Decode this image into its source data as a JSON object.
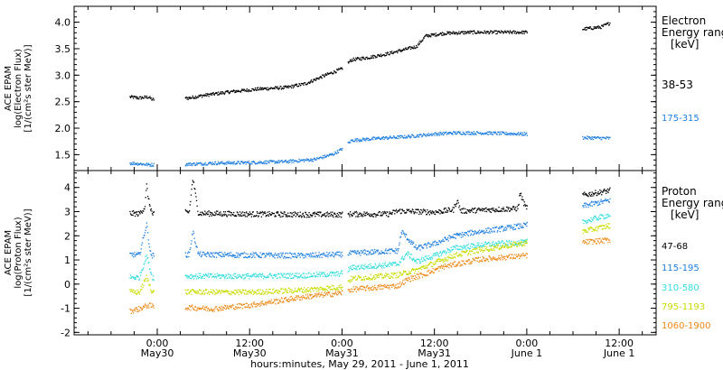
{
  "colors": {
    "black": "#000000",
    "blue": "#1f7fe0",
    "cyan": "#33dddd",
    "yellow": "#c8dc00",
    "orange": "#ee8a18"
  },
  "chart_data": [
    {
      "type": "scatter",
      "panel": "electron",
      "ylabel": [
        "ACE EPAM",
        "log(Electron Flux)",
        "[1/(cm²s ster MeV)]"
      ],
      "y_scale": "log10",
      "ylim": [
        1.2,
        4.3
      ],
      "yticks": [
        "1.5",
        "2.0",
        "2.5",
        "3.0",
        "3.5",
        "4.0"
      ],
      "legend_title": [
        "Electron",
        "Energy range",
        "[keV]"
      ],
      "series": [
        {
          "name": "38-53",
          "color": "#000000",
          "points": [
            [
              -0.15,
              2.6
            ],
            [
              -0.1,
              2.58
            ],
            [
              -0.05,
              2.6
            ],
            [
              -0.03,
              2.55
            ],
            [
              0.17,
              2.58
            ],
            [
              0.25,
              2.63
            ],
            [
              0.4,
              2.7
            ],
            [
              0.55,
              2.75
            ],
            [
              0.7,
              2.78
            ],
            [
              0.8,
              2.85
            ],
            [
              0.9,
              3.0
            ],
            [
              0.99,
              3.12
            ],
            [
              1.05,
              3.3
            ],
            [
              1.15,
              3.35
            ],
            [
              1.25,
              3.42
            ],
            [
              1.4,
              3.55
            ],
            [
              1.45,
              3.75
            ],
            [
              1.55,
              3.8
            ],
            [
              1.7,
              3.82
            ],
            [
              1.8,
              3.82
            ],
            [
              1.99,
              3.82
            ],
            [
              2.3,
              3.88
            ],
            [
              2.4,
              3.92
            ],
            [
              2.45,
              4.0
            ]
          ]
        },
        {
          "name": "175-315",
          "color": "#1f7fe0",
          "points": [
            [
              -0.15,
              1.35
            ],
            [
              -0.1,
              1.34
            ],
            [
              -0.05,
              1.32
            ],
            [
              -0.03,
              1.32
            ],
            [
              0.17,
              1.33
            ],
            [
              0.3,
              1.35
            ],
            [
              0.5,
              1.36
            ],
            [
              0.7,
              1.38
            ],
            [
              0.85,
              1.42
            ],
            [
              0.95,
              1.52
            ],
            [
              0.99,
              1.6
            ],
            [
              1.05,
              1.78
            ],
            [
              1.2,
              1.82
            ],
            [
              1.35,
              1.85
            ],
            [
              1.5,
              1.9
            ],
            [
              1.6,
              1.92
            ],
            [
              1.75,
              1.92
            ],
            [
              1.99,
              1.9
            ],
            [
              2.3,
              1.83
            ],
            [
              2.45,
              1.82
            ]
          ]
        }
      ]
    },
    {
      "type": "scatter",
      "panel": "proton",
      "ylabel": [
        "ACE EPAM",
        "log(Proton Flux)",
        "[1/(cm²s ster MeV)]"
      ],
      "y_scale": "log10",
      "ylim": [
        -2.1,
        4.7
      ],
      "yticks": [
        "-2",
        "-1",
        "0",
        "1",
        "2",
        "3",
        "4"
      ],
      "legend_title": [
        "Proton",
        "Energy range",
        "[keV]"
      ],
      "series": [
        {
          "name": "47-68",
          "color": "#000000",
          "points": [
            [
              -0.15,
              2.95
            ],
            [
              -0.1,
              2.93
            ],
            [
              -0.07,
              3.2
            ],
            [
              -0.06,
              4.1
            ],
            [
              -0.05,
              3.5
            ],
            [
              -0.03,
              2.92
            ],
            [
              0.17,
              3.0
            ],
            [
              0.19,
              4.4
            ],
            [
              0.22,
              2.95
            ],
            [
              0.5,
              2.92
            ],
            [
              0.8,
              2.9
            ],
            [
              0.99,
              2.9
            ],
            [
              1.05,
              2.92
            ],
            [
              1.25,
              2.92
            ],
            [
              1.3,
              3.05
            ],
            [
              1.5,
              3.0
            ],
            [
              1.6,
              3.1
            ],
            [
              1.62,
              3.5
            ],
            [
              1.64,
              3.05
            ],
            [
              1.8,
              3.1
            ],
            [
              1.95,
              3.15
            ],
            [
              1.96,
              3.8
            ],
            [
              1.99,
              3.2
            ],
            [
              2.3,
              3.7
            ],
            [
              2.45,
              3.9
            ]
          ]
        },
        {
          "name": "115-195",
          "color": "#1f7fe0",
          "points": [
            [
              -0.15,
              1.25
            ],
            [
              -0.1,
              1.22
            ],
            [
              -0.06,
              2.5
            ],
            [
              -0.04,
              1.3
            ],
            [
              -0.03,
              1.2
            ],
            [
              0.17,
              1.25
            ],
            [
              0.19,
              2.2
            ],
            [
              0.22,
              1.25
            ],
            [
              0.5,
              1.22
            ],
            [
              0.8,
              1.2
            ],
            [
              0.99,
              1.25
            ],
            [
              1.05,
              1.3
            ],
            [
              1.3,
              1.4
            ],
            [
              1.32,
              2.2
            ],
            [
              1.4,
              1.5
            ],
            [
              1.5,
              1.7
            ],
            [
              1.6,
              2.0
            ],
            [
              1.7,
              2.15
            ],
            [
              1.8,
              2.25
            ],
            [
              1.99,
              2.45
            ],
            [
              2.3,
              3.25
            ],
            [
              2.45,
              3.5
            ]
          ]
        },
        {
          "name": "310-580",
          "color": "#33dddd",
          "points": [
            [
              -0.15,
              0.3
            ],
            [
              -0.1,
              0.3
            ],
            [
              -0.06,
              1.2
            ],
            [
              -0.03,
              0.3
            ],
            [
              0.17,
              0.35
            ],
            [
              0.5,
              0.35
            ],
            [
              0.8,
              0.38
            ],
            [
              0.99,
              0.45
            ],
            [
              1.05,
              0.7
            ],
            [
              1.3,
              0.85
            ],
            [
              1.35,
              1.3
            ],
            [
              1.4,
              0.95
            ],
            [
              1.5,
              1.2
            ],
            [
              1.6,
              1.5
            ],
            [
              1.75,
              1.65
            ],
            [
              1.99,
              1.75
            ],
            [
              2.3,
              2.6
            ],
            [
              2.45,
              2.9
            ]
          ]
        },
        {
          "name": "795-1193",
          "color": "#c8dc00",
          "points": [
            [
              -0.15,
              -0.3
            ],
            [
              -0.1,
              -0.32
            ],
            [
              -0.06,
              0.3
            ],
            [
              -0.03,
              -0.3
            ],
            [
              0.17,
              -0.3
            ],
            [
              0.5,
              -0.32
            ],
            [
              0.8,
              -0.22
            ],
            [
              0.99,
              -0.1
            ],
            [
              1.05,
              0.25
            ],
            [
              1.3,
              0.4
            ],
            [
              1.4,
              0.6
            ],
            [
              1.5,
              0.9
            ],
            [
              1.6,
              1.2
            ],
            [
              1.75,
              1.45
            ],
            [
              1.99,
              1.72
            ],
            [
              2.3,
              2.2
            ],
            [
              2.45,
              2.45
            ]
          ]
        },
        {
          "name": "1060-1900",
          "color": "#ee8a18",
          "points": [
            [
              -0.15,
              -1.1
            ],
            [
              -0.1,
              -1.0
            ],
            [
              -0.05,
              -0.85
            ],
            [
              -0.03,
              -0.9
            ],
            [
              0.17,
              -0.95
            ],
            [
              0.3,
              -1.0
            ],
            [
              0.5,
              -0.85
            ],
            [
              0.8,
              -0.5
            ],
            [
              0.99,
              -0.35
            ],
            [
              1.05,
              -0.2
            ],
            [
              1.3,
              -0.05
            ],
            [
              1.35,
              0.2
            ],
            [
              1.45,
              0.45
            ],
            [
              1.55,
              0.75
            ],
            [
              1.75,
              1.05
            ],
            [
              1.99,
              1.2
            ],
            [
              2.3,
              1.75
            ],
            [
              2.45,
              1.85
            ]
          ]
        }
      ]
    }
  ],
  "x_axis": {
    "title": "hours:minutes, May 29, 2011 - June  1, 2011",
    "ticks": [
      {
        "day": 0,
        "time": "0:00",
        "date": "May30"
      },
      {
        "day": 0.5,
        "time": "12:00",
        "date": "May30"
      },
      {
        "day": 1,
        "time": "0:00",
        "date": "May31"
      },
      {
        "day": 1.5,
        "time": "12:00",
        "date": "May31"
      },
      {
        "day": 2,
        "time": "0:00",
        "date": "June 1"
      },
      {
        "day": 2.5,
        "time": "12:00",
        "date": "June 1"
      }
    ]
  }
}
